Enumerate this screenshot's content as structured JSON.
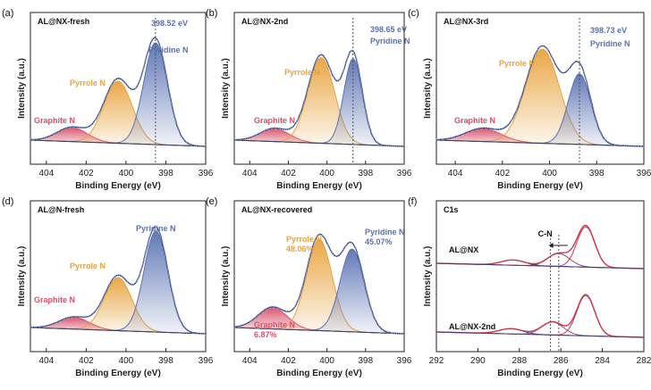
{
  "colors": {
    "graphite": "#d8516b",
    "pyrrole": "#e8a33d",
    "pyridine": "#5a72b2",
    "envelope": "#253a7a",
    "baseline": "#3a3f5c",
    "c1s_line": "#c83a4f",
    "c1s_comp": "#3a3a78",
    "marker": "#555555"
  },
  "chart_data": [
    {
      "panel_label": "(a)",
      "title": "AL@NX-fresh",
      "type": "area",
      "xlabel": "Binding Energy (eV)",
      "ylabel": "Intensity (a.u.)",
      "xlim": [
        404.8,
        396
      ],
      "xticks": [
        "404",
        "402",
        "400",
        "398",
        "396"
      ],
      "peaks": [
        {
          "name": "Graphite N",
          "center": 402.7,
          "height": 0.13,
          "width": 1.6
        },
        {
          "name": "Pyrrole N",
          "center": 400.4,
          "height": 0.58,
          "width": 1.5
        },
        {
          "name": "Pyridine N",
          "center": 398.52,
          "height": 0.95,
          "width": 1.25
        }
      ],
      "marker": {
        "x": 398.52,
        "label": "398.52 eV"
      }
    },
    {
      "panel_label": "(b)",
      "title": "AL@NX-2nd",
      "type": "area",
      "xlabel": "Binding Energy (eV)",
      "ylabel": "Intensity (a.u.)",
      "xlim": [
        404.8,
        396
      ],
      "xticks": [
        "404",
        "402",
        "400",
        "398",
        "396"
      ],
      "peaks": [
        {
          "name": "Graphite N",
          "center": 402.7,
          "height": 0.12,
          "width": 1.6
        },
        {
          "name": "Pyrrole N",
          "center": 400.3,
          "height": 0.8,
          "width": 1.45
        },
        {
          "name": "Pyridine N",
          "center": 398.65,
          "height": 0.8,
          "width": 1.0
        }
      ],
      "marker": {
        "x": 398.65,
        "label": "398.65 eV"
      }
    },
    {
      "panel_label": "(c)",
      "title": "AL@NX-3rd",
      "type": "area",
      "xlabel": "Binding Energy (eV)",
      "ylabel": "Intensity (a.u.)",
      "xlim": [
        404.8,
        396
      ],
      "xticks": [
        "404",
        "402",
        "400",
        "398",
        "396"
      ],
      "peaks": [
        {
          "name": "Graphite N",
          "center": 402.8,
          "height": 0.12,
          "width": 1.6
        },
        {
          "name": "Pyrrole N",
          "center": 400.3,
          "height": 0.88,
          "width": 1.5
        },
        {
          "name": "Pyridine N",
          "center": 398.73,
          "height": 0.66,
          "width": 1.0
        }
      ],
      "marker": {
        "x": 398.73,
        "label": "398.73 eV"
      }
    },
    {
      "panel_label": "(d)",
      "title": "AL@N-fresh",
      "type": "area",
      "xlabel": "Binding Energy (eV)",
      "ylabel": "Intensity (a.u.)",
      "xlim": [
        404.8,
        396
      ],
      "xticks": [
        "404",
        "402",
        "400",
        "398",
        "396"
      ],
      "peaks": [
        {
          "name": "Graphite N",
          "center": 402.6,
          "height": 0.11,
          "width": 1.6
        },
        {
          "name": "Pyrrole N",
          "center": 400.4,
          "height": 0.5,
          "width": 1.45
        },
        {
          "name": "Pyridine N",
          "center": 398.5,
          "height": 0.95,
          "width": 1.25
        }
      ]
    },
    {
      "panel_label": "(e)",
      "title": "AL@NX-recovered",
      "type": "area",
      "xlabel": "Binding Energy (eV)",
      "ylabel": "Intensity (a.u.)",
      "xlim": [
        404.8,
        396
      ],
      "xticks": [
        "404",
        "402",
        "400",
        "398",
        "396"
      ],
      "peaks": [
        {
          "name": "Graphite N",
          "pct": "6.87%",
          "center": 402.8,
          "height": 0.2,
          "width": 1.6
        },
        {
          "name": "Pyrrole N",
          "pct": "48.06%",
          "center": 400.4,
          "height": 0.86,
          "width": 1.4
        },
        {
          "name": "Pyridine N",
          "pct": "45.07%",
          "center": 398.7,
          "height": 0.78,
          "width": 1.3
        }
      ]
    },
    {
      "panel_label": "(f)",
      "title": "C1s",
      "type": "line",
      "xlabel": "Binding Energy (eV)",
      "ylabel": "Intensity (a.u.)",
      "xlim": [
        292,
        282
      ],
      "xticks": [
        "292",
        "290",
        "288",
        "286",
        "284",
        "282"
      ],
      "annotation": "C-N",
      "dashed_lines": [
        286.5,
        286.1
      ],
      "series": [
        {
          "name": "AL@NX",
          "components": [
            {
              "center": 284.8,
              "height": 0.78,
              "width": 0.9
            },
            {
              "center": 286.1,
              "height": 0.25,
              "width": 1.1
            },
            {
              "center": 288.3,
              "height": 0.1,
              "width": 1.2
            }
          ]
        },
        {
          "name": "AL@NX-2nd",
          "components": [
            {
              "center": 284.8,
              "height": 0.78,
              "width": 0.9
            },
            {
              "center": 286.4,
              "height": 0.25,
              "width": 1.1
            },
            {
              "center": 288.4,
              "height": 0.1,
              "width": 1.2
            }
          ]
        }
      ]
    }
  ]
}
